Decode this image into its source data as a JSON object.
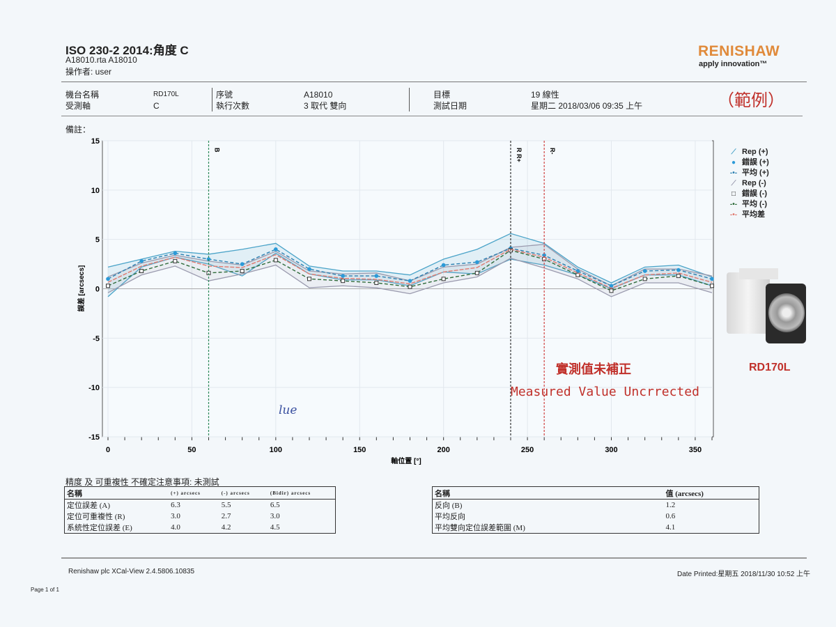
{
  "header": {
    "title": "ISO 230-2 2014:角度 C",
    "file": "A18010.rta A18010",
    "operator": "操作者: user",
    "logo": "RENISHAW",
    "tagline": "apply innovation™",
    "sample_mark": "（範例）"
  },
  "info": {
    "machine_label": "機台名稱",
    "machine_value": "RD170L",
    "axis_label": "受測軸",
    "axis_value": "C",
    "serial_label": "序號",
    "serial_value": "A18010",
    "runs_label": "執行次數",
    "runs_value": "3 取代 雙向",
    "target_label": "目標",
    "target_value": "19 線性",
    "date_label": "測試日期",
    "date_value": "星期二 2018/03/06 09:35 上午",
    "remarks_label": "備註："
  },
  "chart_data": {
    "type": "line",
    "xlabel": "軸位置 [°]",
    "ylabel": "誤差 [arcsecs]",
    "xlim": [
      0,
      360
    ],
    "ylim": [
      -15,
      15
    ],
    "xticks": [
      0,
      50,
      100,
      150,
      200,
      250,
      300,
      350
    ],
    "yticks": [
      15,
      10,
      5,
      0,
      -5,
      -10,
      -15
    ],
    "grid": true,
    "legend_placement": "right",
    "x": [
      0,
      20,
      40,
      60,
      80,
      100,
      120,
      140,
      160,
      180,
      200,
      220,
      240,
      260,
      280,
      300,
      320,
      340,
      360
    ],
    "series": [
      {
        "name": "Rep (+)",
        "kind": "band",
        "color": "#4aa3c8",
        "upper": [
          2.2,
          3.0,
          3.8,
          3.5,
          4.0,
          4.6,
          2.3,
          1.8,
          1.8,
          1.4,
          3.0,
          4.0,
          5.6,
          4.6,
          2.2,
          0.6,
          2.2,
          2.4,
          1.2
        ],
        "lower": [
          -0.8,
          2.2,
          3.2,
          2.5,
          1.3,
          3.6,
          1.5,
          0.9,
          0.9,
          0.3,
          1.7,
          1.5,
          3.0,
          2.4,
          1.4,
          0.0,
          1.4,
          1.4,
          0.3
        ]
      },
      {
        "name": "Rep (-)",
        "kind": "band",
        "color": "#9a9aae",
        "upper": [
          1.2,
          2.6,
          3.4,
          2.8,
          2.4,
          3.8,
          1.8,
          1.5,
          1.6,
          0.8,
          2.2,
          2.5,
          4.2,
          4.5,
          2.0,
          0.3,
          2.0,
          2.0,
          1.3
        ],
        "lower": [
          -0.4,
          1.4,
          2.3,
          0.8,
          1.5,
          2.4,
          0.1,
          0.3,
          0.1,
          -0.5,
          0.6,
          1.2,
          3.1,
          2.1,
          1.0,
          -0.8,
          0.6,
          0.6,
          -0.4
        ]
      },
      {
        "name": "平均 (+)",
        "kind": "mean",
        "marker": "dot",
        "color": "#2b7fb0",
        "values": [
          1.0,
          2.8,
          3.6,
          3.0,
          2.5,
          4.0,
          2.0,
          1.3,
          1.3,
          0.8,
          2.4,
          2.7,
          4.1,
          3.4,
          1.8,
          0.3,
          1.8,
          1.9,
          1.0
        ]
      },
      {
        "name": "平均 (-)",
        "kind": "mean",
        "marker": "square",
        "color": "#2e6b3a",
        "values": [
          0.3,
          1.8,
          2.8,
          1.6,
          1.8,
          2.9,
          1.0,
          0.8,
          0.6,
          0.2,
          1.0,
          1.6,
          3.9,
          3.0,
          1.4,
          -0.2,
          1.0,
          1.3,
          0.3
        ]
      },
      {
        "name": "平均差",
        "kind": "line",
        "color": "#e07a70",
        "values": [
          0.65,
          2.3,
          3.2,
          2.3,
          2.15,
          3.45,
          1.5,
          1.05,
          0.95,
          0.5,
          1.7,
          2.15,
          4.0,
          3.2,
          1.6,
          0.05,
          1.4,
          1.6,
          0.65
        ]
      }
    ],
    "legend": [
      "Rep (+)",
      "錯誤 (+)",
      "平均 (+)",
      "Rep (-)",
      "錯誤 (-)",
      "平均 (-)",
      "平均差"
    ],
    "markers": [
      {
        "label": "B",
        "x": 60,
        "color": "#2e8a5a"
      },
      {
        "label": "R R+",
        "x": 240,
        "color": "#333333"
      },
      {
        "label": "R-",
        "x": 260,
        "color": "#d04040"
      }
    ]
  },
  "annotations": {
    "zh": "實測值未補正",
    "en": "Measured Value Uncrrected",
    "handwritten": "lue",
    "machine_name": "RD170L"
  },
  "results": {
    "heading": "精度 及 可重複性 不確定注意事項: 未測試",
    "left_headers": [
      "名稱",
      "(+) arcsecs",
      "(-) arcsecs",
      "(Bidir) arcsecs"
    ],
    "left_rows": [
      [
        "定位誤差 (A)",
        "6.3",
        "5.5",
        "6.5"
      ],
      [
        "定位可重複性 (R)",
        "3.0",
        "2.7",
        "3.0"
      ],
      [
        "系統性定位誤差 (E)",
        "4.0",
        "4.2",
        "4.5"
      ]
    ],
    "right_headers": [
      "名稱",
      "值 (arcsecs)"
    ],
    "right_rows": [
      [
        "反向 (B)",
        "1.2"
      ],
      [
        "平均反向",
        "0.6"
      ],
      [
        "平均雙向定位誤差範圍 (M)",
        "4.1"
      ]
    ]
  },
  "footer": {
    "software": "Renishaw plc XCal-View 2.4.5806.10835",
    "printed": "Date Printed:星期五 2018/11/30 10:52 上午",
    "page": "Page 1 of 1"
  }
}
